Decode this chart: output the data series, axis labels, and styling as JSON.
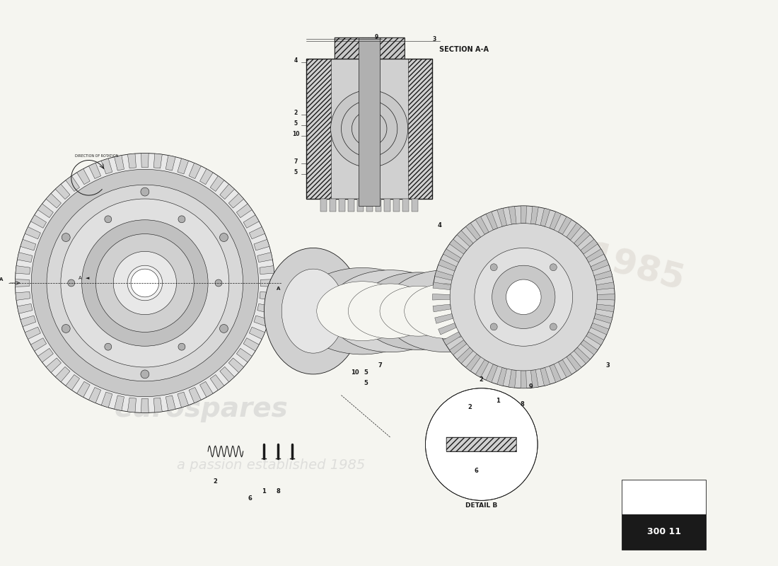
{
  "bg_color": "#f5f5f0",
  "line_color": "#1a1a1a",
  "part_number": "300 11",
  "watermark_text1": "eurospares",
  "watermark_text2": "a passion established 1985",
  "section_label": "SECTION A-A",
  "detail_label": "DETAIL B",
  "direction_label": "DIRECTION OF ROTATION",
  "part_labels": [
    "1",
    "2",
    "3",
    "4",
    "5",
    "6",
    "7",
    "8",
    "9",
    "10"
  ]
}
